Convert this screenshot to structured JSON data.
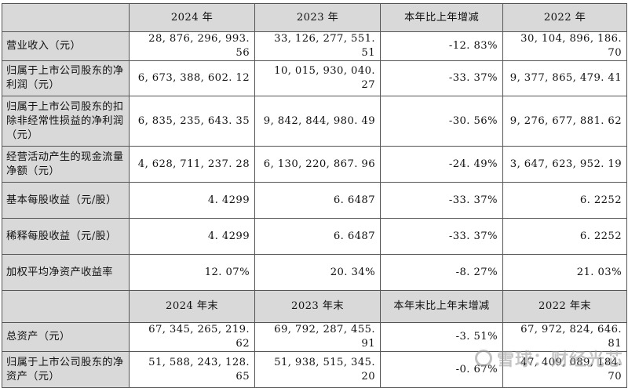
{
  "header1": [
    "",
    "2024 年",
    "2023 年",
    "本年比上年增减",
    "2022 年"
  ],
  "rows1": [
    {
      "label": "营业收入（元）",
      "v2024": "28, 876, 296, 993. 56",
      "v2023": "33, 126, 277, 551. 51",
      "change": "-12. 83%",
      "v2022": "30, 104, 896, 186. 70"
    },
    {
      "label": "归属于上市公司股东的净利润（元）",
      "v2024": "6, 673, 388, 602. 12",
      "v2023": "10, 015, 930, 040. 27",
      "change": "-33. 37%",
      "v2022": "9, 377, 865, 479. 41"
    },
    {
      "label": "归属于上市公司股东的扣除非经常性损益的净利润（元）",
      "v2024": "6, 835, 235, 643. 35",
      "v2023": "9, 842, 844, 980. 49",
      "change": "-30. 56%",
      "v2022": "9, 276, 677, 881. 62"
    },
    {
      "label": "经营活动产生的现金流量净额（元）",
      "v2024": "4, 628, 711, 237. 28",
      "v2023": "6, 130, 220, 867. 96",
      "change": "-24. 49%",
      "v2022": "3, 647, 623, 952. 19"
    },
    {
      "label": "基本每股收益（元/股）",
      "v2024": "4. 4299",
      "v2023": "6. 6487",
      "change": "-33. 37%",
      "v2022": "6. 2252"
    },
    {
      "label": "稀释每股收益（元/股）",
      "v2024": "4. 4299",
      "v2023": "6. 6487",
      "change": "-33. 37%",
      "v2022": "6. 2252"
    },
    {
      "label": "加权平均净资产收益率",
      "v2024": "12. 07%",
      "v2023": "20. 34%",
      "change": "-8. 27%",
      "v2022": "21. 03%"
    }
  ],
  "header2": [
    "",
    "2024 年末",
    "2023 年末",
    "本年末比上年末增减",
    "2022 年末"
  ],
  "rows2": [
    {
      "label": "总资产（元）",
      "v2024": "67, 345, 265, 219. 62",
      "v2023": "69, 792, 287, 455. 91",
      "change": "-3. 51%",
      "v2022": "67, 972, 824, 646. 81"
    },
    {
      "label": "归属于上市公司股东的净资产（元）",
      "v2024": "51, 588, 243, 128. 65",
      "v2023": "51, 938, 515, 345. 20",
      "change": "-0. 67%",
      "v2022": "47, 409, 089, 184. 70"
    }
  ],
  "watermark": "雪球：财经光芯"
}
